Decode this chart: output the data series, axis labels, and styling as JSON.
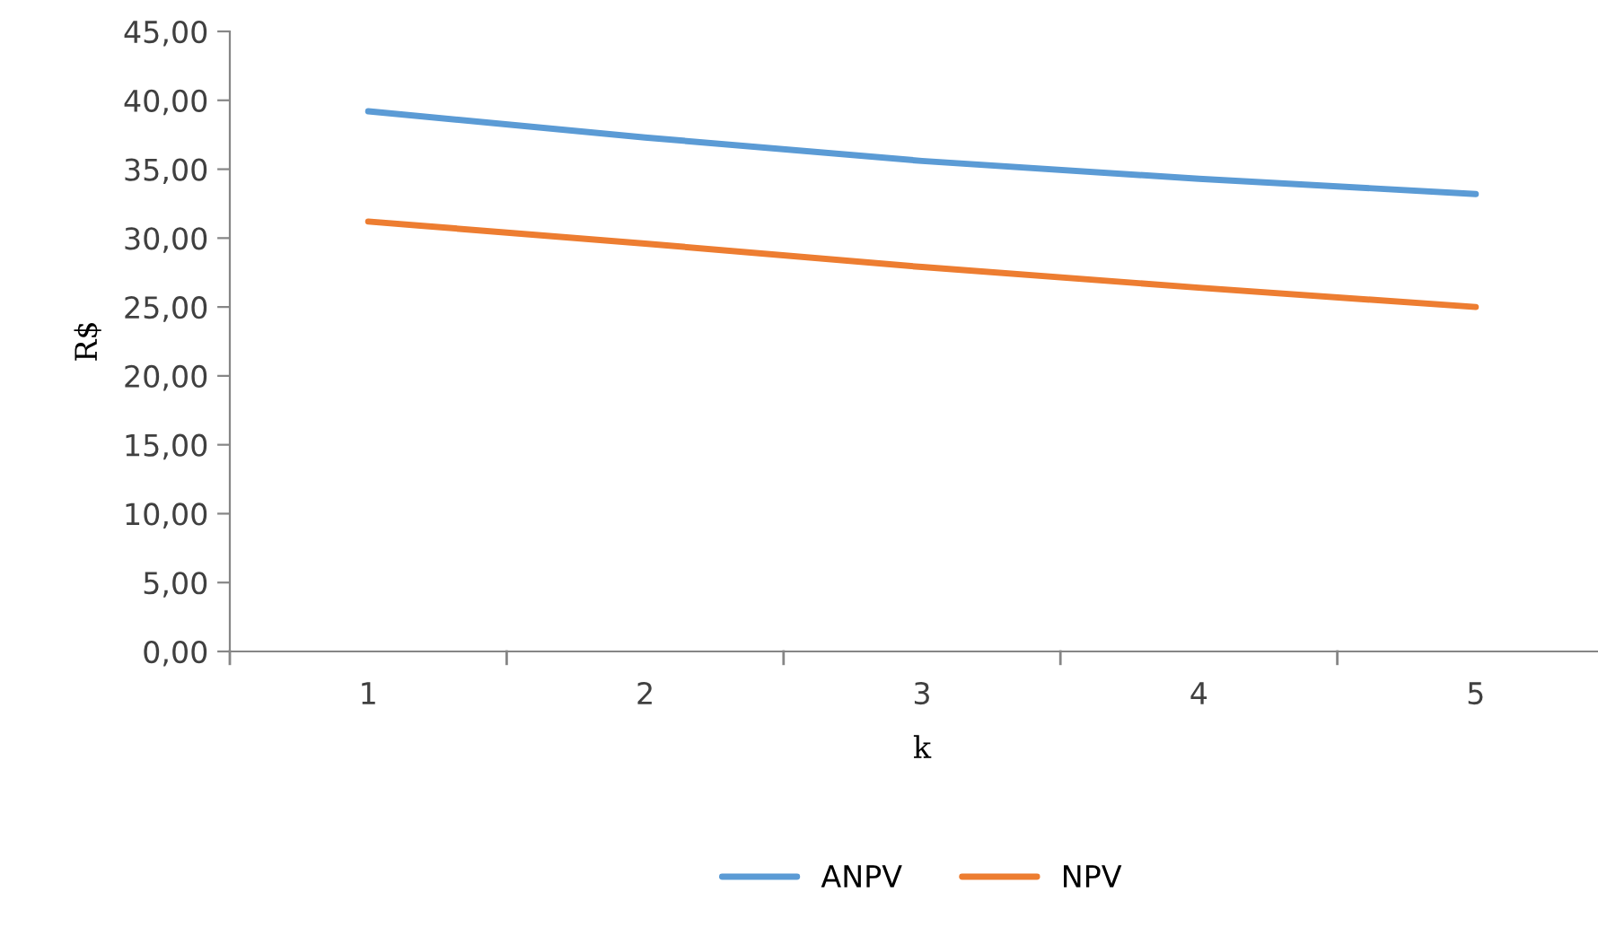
{
  "chart_data": {
    "type": "line",
    "xlabel": "k",
    "ylabel": "R$",
    "categories": [
      "1",
      "2",
      "3",
      "4",
      "5"
    ],
    "series": [
      {
        "name": "ANPV",
        "color": "#5b9bd5",
        "values": [
          39.2,
          37.3,
          35.6,
          34.3,
          33.2
        ]
      },
      {
        "name": "NPV",
        "color": "#ed7d31",
        "values": [
          31.2,
          29.6,
          27.9,
          26.4,
          25.0
        ]
      }
    ],
    "ylim": [
      0,
      45
    ],
    "yticks": [
      {
        "value": 0,
        "label": "0,00"
      },
      {
        "value": 5,
        "label": "5,00"
      },
      {
        "value": 10,
        "label": "10,00"
      },
      {
        "value": 15,
        "label": "15,00"
      },
      {
        "value": 20,
        "label": "20,00"
      },
      {
        "value": 25,
        "label": "25,00"
      },
      {
        "value": 30,
        "label": "30,00"
      },
      {
        "value": 35,
        "label": "35,00"
      },
      {
        "value": 40,
        "label": "40,00"
      },
      {
        "value": 45,
        "label": "45,00"
      }
    ],
    "grid": false,
    "legend": "bottom"
  }
}
